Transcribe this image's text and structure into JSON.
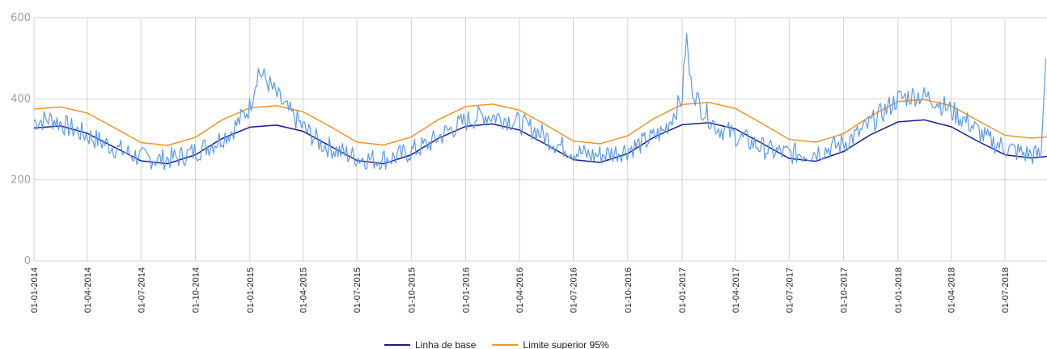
{
  "chart_data": {
    "type": "line",
    "title": "",
    "xlabel": "",
    "ylabel": "",
    "x_ticks": [
      "01-01-2014",
      "01-04-2014",
      "01-07-2014",
      "01-10-2014",
      "01-01-2015",
      "01-04-2015",
      "01-07-2015",
      "01-10-2015",
      "01-01-2016",
      "01-04-2016",
      "01-07-2016",
      "01-10-2016",
      "01-01-2017",
      "01-04-2017",
      "01-07-2017",
      "01-10-2017",
      "01-01-2018",
      "01-04-2018",
      "01-07-2018"
    ],
    "x_range": [
      "2014-01-01",
      "2018-09-10"
    ],
    "y_ticks": [
      0,
      200,
      400,
      600
    ],
    "ylim": [
      0,
      600
    ],
    "grid": true,
    "legend_position": "bottom",
    "colors": {
      "observed": "#5b9be6",
      "baseline": "#1a1a8c",
      "upper": "#f29424",
      "grid": "#d3d3d3",
      "axis_text": "#9e9e9e"
    },
    "series": [
      {
        "name": "",
        "role": "observed",
        "x": [
          "2014-01-01",
          "2014-02-01",
          "2014-03-01",
          "2014-04-01",
          "2014-05-01",
          "2014-06-01",
          "2014-07-01",
          "2014-08-01",
          "2014-09-01",
          "2014-10-01",
          "2014-11-01",
          "2014-12-01",
          "2015-01-01",
          "2015-01-15",
          "2015-02-01",
          "2015-03-01",
          "2015-04-01",
          "2015-05-01",
          "2015-06-01",
          "2015-07-01",
          "2015-08-01",
          "2015-09-01",
          "2015-10-01",
          "2015-11-01",
          "2015-12-01",
          "2016-01-01",
          "2016-02-01",
          "2016-03-01",
          "2016-04-01",
          "2016-05-01",
          "2016-06-01",
          "2016-07-01",
          "2016-08-01",
          "2016-09-01",
          "2016-10-01",
          "2016-11-01",
          "2016-12-01",
          "2017-01-01",
          "2017-01-08",
          "2017-01-15",
          "2017-02-01",
          "2017-03-01",
          "2017-04-01",
          "2017-05-01",
          "2017-06-01",
          "2017-07-01",
          "2017-08-01",
          "2017-09-01",
          "2017-10-01",
          "2017-11-01",
          "2017-12-01",
          "2018-01-01",
          "2018-02-01",
          "2018-03-01",
          "2018-04-01",
          "2018-05-01",
          "2018-06-01",
          "2018-07-01",
          "2018-08-01",
          "2018-09-01",
          "2018-09-08"
        ],
        "values": [
          345,
          350,
          330,
          310,
          290,
          270,
          255,
          250,
          255,
          270,
          290,
          320,
          380,
          470,
          440,
          380,
          330,
          290,
          270,
          255,
          250,
          255,
          270,
          290,
          320,
          345,
          360,
          355,
          340,
          320,
          290,
          270,
          260,
          265,
          275,
          295,
          320,
          400,
          560,
          440,
          380,
          330,
          310,
          290,
          270,
          265,
          265,
          275,
          290,
          320,
          360,
          400,
          410,
          400,
          370,
          340,
          300,
          280,
          265,
          260,
          500
        ]
      },
      {
        "name": "Linha de base",
        "role": "baseline",
        "x": [
          "2014-01-01",
          "2014-02-15",
          "2014-04-01",
          "2014-05-15",
          "2014-07-01",
          "2014-08-15",
          "2014-10-01",
          "2014-11-15",
          "2015-01-01",
          "2015-02-15",
          "2015-04-01",
          "2015-05-15",
          "2015-07-01",
          "2015-08-15",
          "2015-10-01",
          "2015-11-15",
          "2016-01-01",
          "2016-02-15",
          "2016-04-01",
          "2016-05-15",
          "2016-07-01",
          "2016-08-15",
          "2016-10-01",
          "2016-11-15",
          "2017-01-01",
          "2017-02-15",
          "2017-04-01",
          "2017-05-15",
          "2017-07-01",
          "2017-08-15",
          "2017-10-01",
          "2017-11-15",
          "2018-01-01",
          "2018-02-15",
          "2018-04-01",
          "2018-05-15",
          "2018-07-01",
          "2018-08-15",
          "2018-09-10"
        ],
        "values": [
          328,
          333,
          315,
          282,
          247,
          240,
          262,
          302,
          330,
          335,
          320,
          285,
          248,
          240,
          262,
          302,
          332,
          338,
          323,
          288,
          250,
          243,
          265,
          306,
          336,
          341,
          326,
          291,
          253,
          246,
          270,
          311,
          343,
          348,
          331,
          296,
          262,
          254,
          258
        ]
      },
      {
        "name": "Limite superior 95%",
        "role": "upper",
        "x": [
          "2014-01-01",
          "2014-02-15",
          "2014-04-01",
          "2014-05-15",
          "2014-07-01",
          "2014-08-15",
          "2014-10-01",
          "2014-11-15",
          "2015-01-01",
          "2015-02-15",
          "2015-04-01",
          "2015-05-15",
          "2015-07-01",
          "2015-08-15",
          "2015-10-01",
          "2015-11-15",
          "2016-01-01",
          "2016-02-15",
          "2016-04-01",
          "2016-05-15",
          "2016-07-01",
          "2016-08-15",
          "2016-10-01",
          "2016-11-15",
          "2017-01-01",
          "2017-02-15",
          "2017-04-01",
          "2017-05-15",
          "2017-07-01",
          "2017-08-15",
          "2017-10-01",
          "2017-11-15",
          "2018-01-01",
          "2018-02-15",
          "2018-04-01",
          "2018-05-15",
          "2018-07-01",
          "2018-08-15",
          "2018-09-10"
        ],
        "values": [
          375,
          380,
          365,
          330,
          292,
          285,
          305,
          348,
          378,
          383,
          368,
          333,
          293,
          286,
          306,
          348,
          381,
          387,
          372,
          336,
          296,
          289,
          309,
          352,
          386,
          391,
          376,
          340,
          300,
          293,
          314,
          357,
          393,
          398,
          383,
          347,
          310,
          303,
          306
        ]
      }
    ]
  }
}
